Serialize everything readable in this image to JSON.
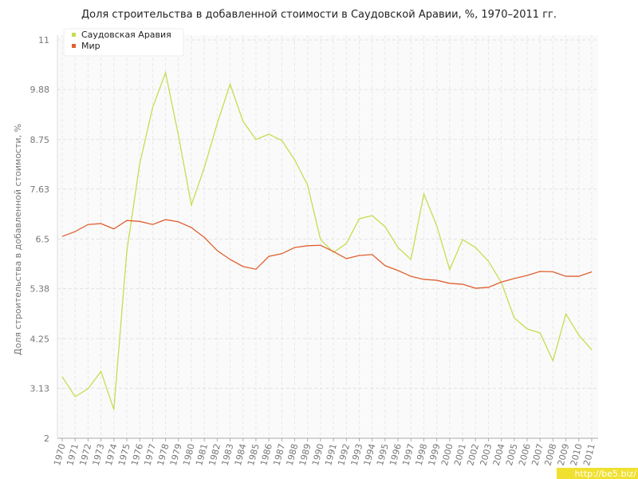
{
  "chart_data": {
    "type": "line",
    "title": "Доля строительства в добавленной стоимости в Саудовской Аравии, %, 1970–2011 гг.",
    "y_label": "Доля строительства в добавленной стоимости, %",
    "watermark": "http://be5.biz/",
    "categories": [
      "1970",
      "1971",
      "1972",
      "1973",
      "1974",
      "1975",
      "1976",
      "1977",
      "1978",
      "1979",
      "1980",
      "1981",
      "1982",
      "1983",
      "1984",
      "1985",
      "1986",
      "1987",
      "1988",
      "1989",
      "1990",
      "1991",
      "1992",
      "1993",
      "1994",
      "1995",
      "1996",
      "1997",
      "1998",
      "1999",
      "2000",
      "2001",
      "2002",
      "2003",
      "2004",
      "2005",
      "2006",
      "2007",
      "2008",
      "2009",
      "2010",
      "2011"
    ],
    "series": [
      {
        "name": "Саудовская Аравия",
        "color": "#c8dc50",
        "values": [
          3.39,
          2.94,
          3.12,
          3.51,
          2.65,
          6.22,
          8.2,
          9.47,
          10.26,
          8.84,
          7.27,
          8.11,
          9.11,
          10.0,
          9.16,
          8.75,
          8.87,
          8.73,
          8.29,
          7.72,
          6.49,
          6.2,
          6.4,
          6.96,
          7.03,
          6.78,
          6.31,
          6.04,
          7.52,
          6.8,
          5.81,
          6.49,
          6.31,
          6.0,
          5.52,
          4.72,
          4.47,
          4.38,
          3.75,
          4.81,
          4.33,
          4.0
        ]
      },
      {
        "name": "Мир",
        "color": "#e06030",
        "values": [
          6.56,
          6.67,
          6.83,
          6.85,
          6.73,
          6.92,
          6.9,
          6.83,
          6.94,
          6.89,
          6.76,
          6.54,
          6.24,
          6.04,
          5.88,
          5.82,
          6.11,
          6.17,
          6.31,
          6.35,
          6.36,
          6.22,
          6.06,
          6.13,
          6.15,
          5.9,
          5.79,
          5.66,
          5.59,
          5.57,
          5.5,
          5.48,
          5.39,
          5.41,
          5.53,
          5.61,
          5.68,
          5.77,
          5.76,
          5.66,
          5.66,
          5.76
        ]
      }
    ],
    "ylim": [
      2,
      11
    ],
    "yticks": [
      2,
      3.13,
      4.25,
      5.38,
      6.5,
      7.63,
      8.75,
      9.88,
      11
    ],
    "grid": true,
    "legend": "top-left"
  }
}
